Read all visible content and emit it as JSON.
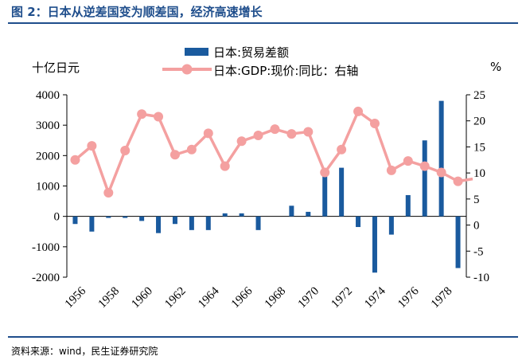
{
  "header": {
    "title": "图 2：日本从逆差国变为顺差国，经济高速增长"
  },
  "footer": {
    "source": "资料来源：wind，民生证券研究院"
  },
  "colors": {
    "bar": "#1a5a9e",
    "line": "#f4a0a0",
    "title": "#1f4e8c"
  },
  "chart_data": {
    "type": "bar+line",
    "left_unit": "十亿日元",
    "right_unit": "%",
    "years": [
      1956,
      1957,
      1958,
      1959,
      1960,
      1961,
      1962,
      1963,
      1964,
      1965,
      1966,
      1967,
      1968,
      1969,
      1970,
      1971,
      1972,
      1973,
      1974,
      1975,
      1976,
      1977,
      1978,
      1979
    ],
    "x_tick_labels": [
      "1956",
      "1958",
      "1960",
      "1962",
      "1964",
      "1966",
      "1968",
      "1970",
      "1972",
      "1974",
      "1976",
      "1978"
    ],
    "y_left": {
      "min": -2000,
      "max": 4000,
      "ticks": [
        "-2000",
        "-1000",
        "0",
        "1000",
        "2000",
        "3000",
        "4000"
      ]
    },
    "y_right": {
      "min": -10,
      "max": 25,
      "ticks": [
        "-10",
        "-5",
        "0",
        "5",
        "10",
        "15",
        "20",
        "25"
      ]
    },
    "series": [
      {
        "name": "日本:贸易差额",
        "type": "bar",
        "axis": "left",
        "values": [
          -250,
          -500,
          -50,
          -50,
          -150,
          -550,
          -250,
          -450,
          -450,
          100,
          100,
          -450,
          0,
          350,
          150,
          1400,
          1600,
          -350,
          -1850,
          -600,
          700,
          2500,
          3800,
          -1700
        ]
      },
      {
        "name": "日本:GDP:现价:同比：右轴",
        "type": "line",
        "axis": "right",
        "values": [
          12.5,
          15.2,
          6.2,
          14.3,
          21.3,
          20.8,
          13.5,
          14.5,
          17.6,
          11.3,
          16.1,
          17.2,
          18.4,
          17.5,
          17.9,
          10.1,
          14.5,
          21.8,
          19.5,
          10.5,
          12.3,
          11.3,
          10.1,
          8.4
        ]
      }
    ]
  }
}
